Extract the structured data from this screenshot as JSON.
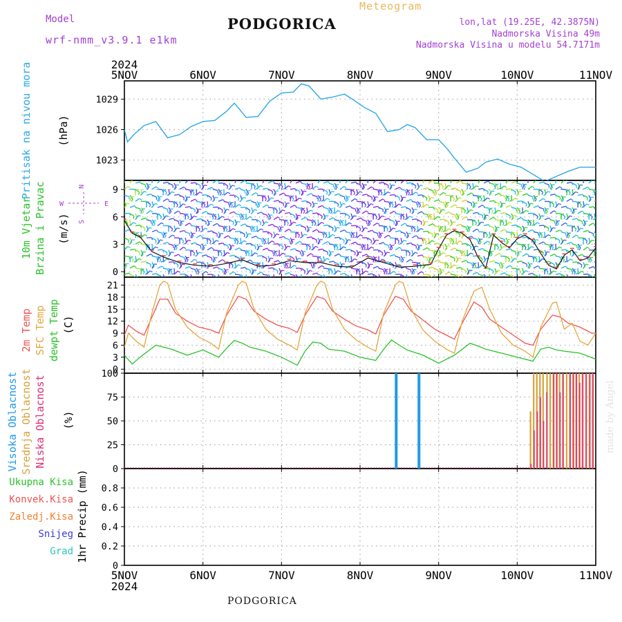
{
  "header": {
    "model_label": "Model",
    "model_name": "wrf-nmm_v3.9.1  e1km",
    "title": "PODGORICA",
    "product": "Meteogram",
    "location": "lon,lat (19.25E, 42.3875N)",
    "elevation": "Nadmorska Visina 49m",
    "model_elevation": "Nadmorska Visina u modelu 54.7171m"
  },
  "footer": {
    "station": "PODGORICA",
    "credit": "made by Angel"
  },
  "axis": {
    "year": "2024",
    "days": [
      "5NOV",
      "6NOV",
      "7NOV",
      "8NOV",
      "9NOV",
      "10NOV",
      "11NOV"
    ]
  },
  "compass": {
    "n": "N",
    "w": "W",
    "e": "E",
    "s": "S"
  },
  "colors": {
    "pressure": "#2aa7e6",
    "temp2m": "#ef5350",
    "sfc_temp": "#e5a53c",
    "dewpoint": "#29c229",
    "high_cloud": "#1e9ae6",
    "mid_cloud": "#d9a03a",
    "low_cloud": "#dc2d74",
    "magenta": "#a43fd1",
    "grid": "#a8a8a8",
    "total_precip": "#29c229",
    "conv_precip": "#ef5350",
    "frozen_precip": "#f07f2e",
    "snow": "#3a3ad8",
    "hail": "#2ac6b8"
  },
  "chart_data": [
    {
      "type": "line",
      "title": "",
      "ylabel": "(hPa)",
      "series_label": "Pritisak na nivou mora",
      "ylim": [
        1021,
        1030.8
      ],
      "yticks": [
        1023,
        1026,
        1029
      ],
      "x_unit": "days since 5NOV 00Z",
      "series": [
        {
          "name": "Pritisak na nivou mora",
          "x": [
            0,
            0.04,
            0.12,
            0.25,
            0.4,
            0.55,
            0.7,
            0.85,
            1.0,
            1.15,
            1.3,
            1.4,
            1.55,
            1.7,
            1.85,
            2.0,
            2.15,
            2.25,
            2.35,
            2.5,
            2.65,
            2.8,
            2.9,
            3.05,
            3.2,
            3.35,
            3.5,
            3.6,
            3.7,
            3.85,
            4.0,
            4.1,
            4.2,
            4.35,
            4.5,
            4.6,
            4.75,
            4.9,
            5.05,
            5.2,
            5.35,
            5.5,
            5.65,
            5.8,
            5.95,
            6.0
          ],
          "values": [
            1026.0,
            1024.8,
            1025.5,
            1026.4,
            1026.8,
            1025.2,
            1025.5,
            1026.3,
            1026.8,
            1026.9,
            1027.8,
            1028.6,
            1027.2,
            1027.3,
            1028.8,
            1029.6,
            1029.7,
            1030.5,
            1030.3,
            1029.0,
            1029.2,
            1029.5,
            1029.0,
            1028.2,
            1027.6,
            1025.8,
            1026.0,
            1026.5,
            1026.2,
            1025.0,
            1025.0,
            1024.2,
            1023.2,
            1021.8,
            1022.2,
            1022.8,
            1023.1,
            1022.6,
            1022.3,
            1021.6,
            1020.9,
            1021.4,
            1021.9,
            1022.3,
            1022.3,
            1022.3
          ]
        }
      ]
    },
    {
      "type": "line",
      "title": "",
      "ylabel": "(m/s)",
      "series_label": [
        "10m Vjetar",
        "Brzina i Pravac"
      ],
      "ylim": [
        -0.6,
        10
      ],
      "yticks": [
        0,
        3,
        6,
        9
      ],
      "series": [
        {
          "name": "10m Vjetar Brzina",
          "x": [
            0,
            0.1,
            0.2,
            0.35,
            0.5,
            0.7,
            0.9,
            1.1,
            1.3,
            1.5,
            1.7,
            1.9,
            2.1,
            2.3,
            2.5,
            2.7,
            2.9,
            3.1,
            3.3,
            3.5,
            3.7,
            3.9,
            4.0,
            4.1,
            4.2,
            4.3,
            4.4,
            4.5,
            4.6,
            4.7,
            4.8,
            4.9,
            5.0,
            5.1,
            5.2,
            5.3,
            5.4,
            5.5,
            5.6,
            5.7,
            5.8,
            5.9,
            6.0
          ],
          "values": [
            5.6,
            4.2,
            3.8,
            2.2,
            1.6,
            1.0,
            0.7,
            0.6,
            0.9,
            1.3,
            0.6,
            0.7,
            1.2,
            1.0,
            1.0,
            0.6,
            0.5,
            1.5,
            1.0,
            0.5,
            0.6,
            0.8,
            2.5,
            4.0,
            4.5,
            4.2,
            3.5,
            1.6,
            0.4,
            4.0,
            3.2,
            2.6,
            3.6,
            4.0,
            3.4,
            2.0,
            0.7,
            0.3,
            1.8,
            2.4,
            1.2,
            1.5,
            2.6
          ]
        },
        {
          "name": "wind direction barbs (W/E/N/S)",
          "values": [
            0,
            0
          ]
        }
      ]
    },
    {
      "type": "line",
      "title": "",
      "ylabel": "(C)",
      "series_label": [
        "2m Temp",
        "SFC Temp",
        "dewpt Temp"
      ],
      "ylim": [
        -1,
        23
      ],
      "yticks": [
        0,
        3,
        6,
        9,
        12,
        15,
        18,
        21
      ],
      "series": [
        {
          "name": "2m Temp",
          "x": [
            0,
            0.05,
            0.15,
            0.25,
            0.35,
            0.45,
            0.55,
            0.65,
            0.8,
            0.95,
            1.1,
            1.2,
            1.3,
            1.45,
            1.55,
            1.65,
            1.8,
            1.95,
            2.1,
            2.2,
            2.3,
            2.45,
            2.55,
            2.65,
            2.8,
            2.95,
            3.1,
            3.2,
            3.3,
            3.45,
            3.55,
            3.65,
            3.8,
            3.95,
            4.1,
            4.2,
            4.3,
            4.45,
            4.55,
            4.65,
            4.8,
            4.95,
            5.1,
            5.2,
            5.3,
            5.45,
            5.55,
            5.65,
            5.8,
            5.95,
            6.0
          ],
          "values": [
            8.5,
            11.0,
            9.5,
            8.5,
            13.0,
            17.5,
            17.5,
            14.0,
            12.0,
            10.5,
            9.8,
            9.0,
            13.5,
            18.2,
            17.5,
            14.5,
            12.5,
            11.0,
            10.2,
            9.2,
            13.5,
            18.2,
            17.5,
            14.5,
            12.5,
            10.8,
            9.8,
            8.8,
            13.5,
            18.2,
            17.5,
            14.5,
            12.3,
            10.0,
            8.5,
            7.5,
            11.5,
            16.8,
            15.5,
            12.5,
            10.5,
            8.5,
            6.5,
            6.0,
            10.0,
            13.5,
            13.0,
            11.5,
            10.5,
            9.0,
            9.0
          ]
        },
        {
          "name": "SFC Temp",
          "x": [
            0,
            0.05,
            0.15,
            0.25,
            0.35,
            0.45,
            0.5,
            0.55,
            0.65,
            0.8,
            0.95,
            1.1,
            1.2,
            1.3,
            1.45,
            1.5,
            1.55,
            1.65,
            1.8,
            1.95,
            2.1,
            2.2,
            2.3,
            2.45,
            2.5,
            2.55,
            2.65,
            2.8,
            2.95,
            3.1,
            3.2,
            3.3,
            3.45,
            3.5,
            3.55,
            3.65,
            3.8,
            3.95,
            4.1,
            4.2,
            4.3,
            4.45,
            4.55,
            4.65,
            4.8,
            4.95,
            5.1,
            5.2,
            5.3,
            5.45,
            5.5,
            5.6,
            5.7,
            5.8,
            5.9,
            6.0
          ],
          "values": [
            5.5,
            9.0,
            7.0,
            5.5,
            14.0,
            21.0,
            22.0,
            21.5,
            15.0,
            10.5,
            8.0,
            6.5,
            5.0,
            14.0,
            21.0,
            22.0,
            21.5,
            15.0,
            10.0,
            7.5,
            6.0,
            4.8,
            14.0,
            21.0,
            22.0,
            21.5,
            15.0,
            10.0,
            7.3,
            5.5,
            4.5,
            14.0,
            21.0,
            22.0,
            21.5,
            15.0,
            9.8,
            7.0,
            5.0,
            4.0,
            12.0,
            19.5,
            20.5,
            15.0,
            9.0,
            6.0,
            4.5,
            3.0,
            10.5,
            16.5,
            16.8,
            10.0,
            11.5,
            7.0,
            6.0,
            9.0
          ]
        },
        {
          "name": "dewpt Temp",
          "x": [
            0,
            0.1,
            0.2,
            0.3,
            0.4,
            0.5,
            0.6,
            0.8,
            1.0,
            1.2,
            1.3,
            1.4,
            1.5,
            1.6,
            1.8,
            2.0,
            2.2,
            2.3,
            2.4,
            2.5,
            2.6,
            2.8,
            3.0,
            3.2,
            3.3,
            3.4,
            3.5,
            3.6,
            3.8,
            4.0,
            4.2,
            4.3,
            4.4,
            4.5,
            4.6,
            4.8,
            5.0,
            5.2,
            5.3,
            5.4,
            5.5,
            5.6,
            5.8,
            6.0
          ],
          "values": [
            3.5,
            1.3,
            3.0,
            4.5,
            6.0,
            5.5,
            5.0,
            3.5,
            4.8,
            3.0,
            5.2,
            7.2,
            6.5,
            5.5,
            4.5,
            3.0,
            1.0,
            4.5,
            6.8,
            6.5,
            5.0,
            4.5,
            3.0,
            2.2,
            5.0,
            7.3,
            6.0,
            4.8,
            3.5,
            1.5,
            3.5,
            5.0,
            6.5,
            5.8,
            5.0,
            4.0,
            3.0,
            2.0,
            5.0,
            5.5,
            4.8,
            4.5,
            4.0,
            2.5
          ]
        }
      ]
    },
    {
      "type": "bar",
      "title": "",
      "ylabel": "(%)",
      "series_label": [
        "Visoka Oblacnost",
        "Srednja Oblacnost",
        "Niska Oblacnost"
      ],
      "ylim": [
        0,
        100
      ],
      "yticks": [
        0,
        25,
        50,
        75,
        100
      ],
      "series": [
        {
          "name": "Visoka Oblacnost",
          "x": [
            3.46,
            3.75
          ],
          "values": [
            100,
            100
          ]
        },
        {
          "name": "Srednja Oblacnost",
          "x": [
            5.17,
            5.21,
            5.25,
            5.29,
            5.33,
            5.38,
            5.42,
            5.46,
            5.5,
            5.54,
            5.58,
            5.63,
            5.67,
            5.71,
            5.75,
            5.79,
            5.83,
            5.88,
            5.92,
            5.96
          ],
          "values": [
            60,
            100,
            100,
            100,
            100,
            100,
            100,
            100,
            100,
            100,
            100,
            100,
            100,
            100,
            100,
            100,
            100,
            100,
            100,
            100
          ]
        },
        {
          "name": "Niska Oblacnost",
          "x": [
            5.15,
            5.19,
            5.23,
            5.27,
            5.31,
            5.35,
            5.44,
            5.48,
            5.52,
            5.56,
            5.65,
            5.69,
            5.73,
            5.77,
            5.81,
            5.85,
            5.9,
            5.94
          ],
          "values": [
            5,
            40,
            60,
            75,
            50,
            80,
            100,
            100,
            80,
            100,
            100,
            100,
            100,
            90,
            100,
            100,
            100,
            100
          ]
        }
      ]
    },
    {
      "type": "bar",
      "title": "",
      "ylabel": "1hr Precip (mm)",
      "legend": [
        "Ukupna  Kisa",
        "Konvek.Kisa",
        "Zaledj.Kisa",
        "Snijeg",
        "Grad"
      ],
      "ylim": [
        0,
        1.0
      ],
      "yticks": [
        0,
        0.2,
        0.4,
        0.6,
        0.8
      ],
      "series": [
        {
          "name": "Ukupna  Kisa",
          "values": [
            0
          ]
        },
        {
          "name": "Konvek.Kisa",
          "values": [
            0
          ]
        },
        {
          "name": "Zaledj.Kisa",
          "values": [
            0
          ]
        },
        {
          "name": "Snijeg",
          "values": [
            0
          ]
        },
        {
          "name": "Grad",
          "values": [
            0
          ]
        }
      ]
    }
  ]
}
